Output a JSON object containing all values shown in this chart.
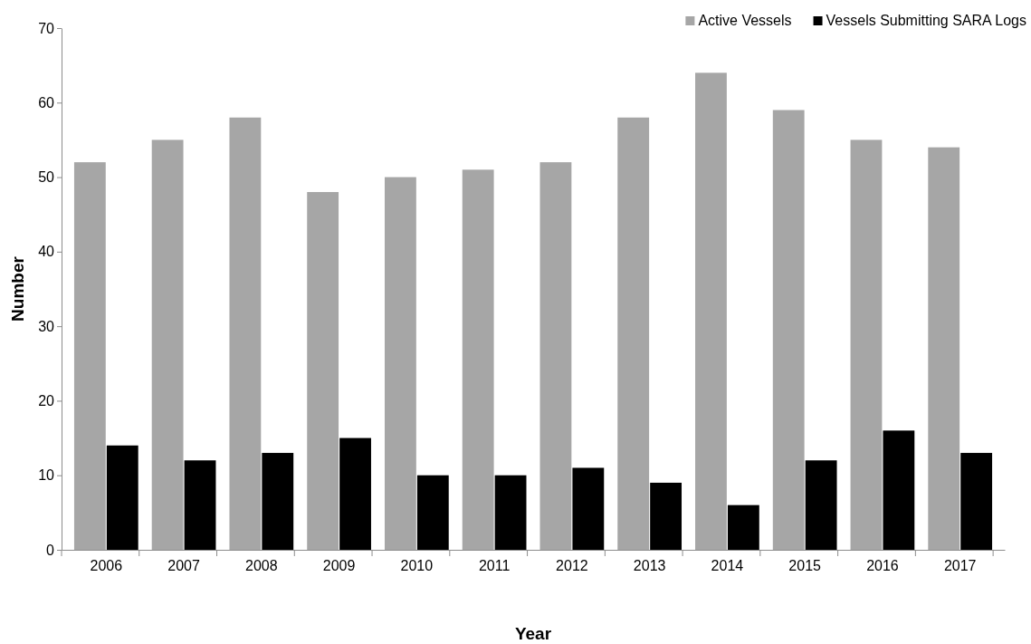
{
  "chart_data": {
    "type": "bar",
    "xlabel": "Year",
    "ylabel": "Number",
    "categories": [
      "2006",
      "2007",
      "2008",
      "2009",
      "2010",
      "2011",
      "2012",
      "2013",
      "2014",
      "2015",
      "2016",
      "2017"
    ],
    "series": [
      {
        "name": "Active Vessels",
        "color": "#a6a6a6",
        "values": [
          52,
          55,
          58,
          48,
          50,
          51,
          52,
          58,
          64,
          59,
          55,
          54
        ]
      },
      {
        "name": "Vessels Submitting SARA Logs",
        "color": "#000000",
        "values": [
          14,
          12,
          13,
          15,
          10,
          10,
          11,
          9,
          6,
          12,
          16,
          13
        ]
      }
    ],
    "ylim": [
      0,
      70
    ],
    "yticks": [
      0,
      10,
      20,
      30,
      40,
      50,
      60,
      70
    ],
    "grid": false,
    "legend": "top right"
  }
}
